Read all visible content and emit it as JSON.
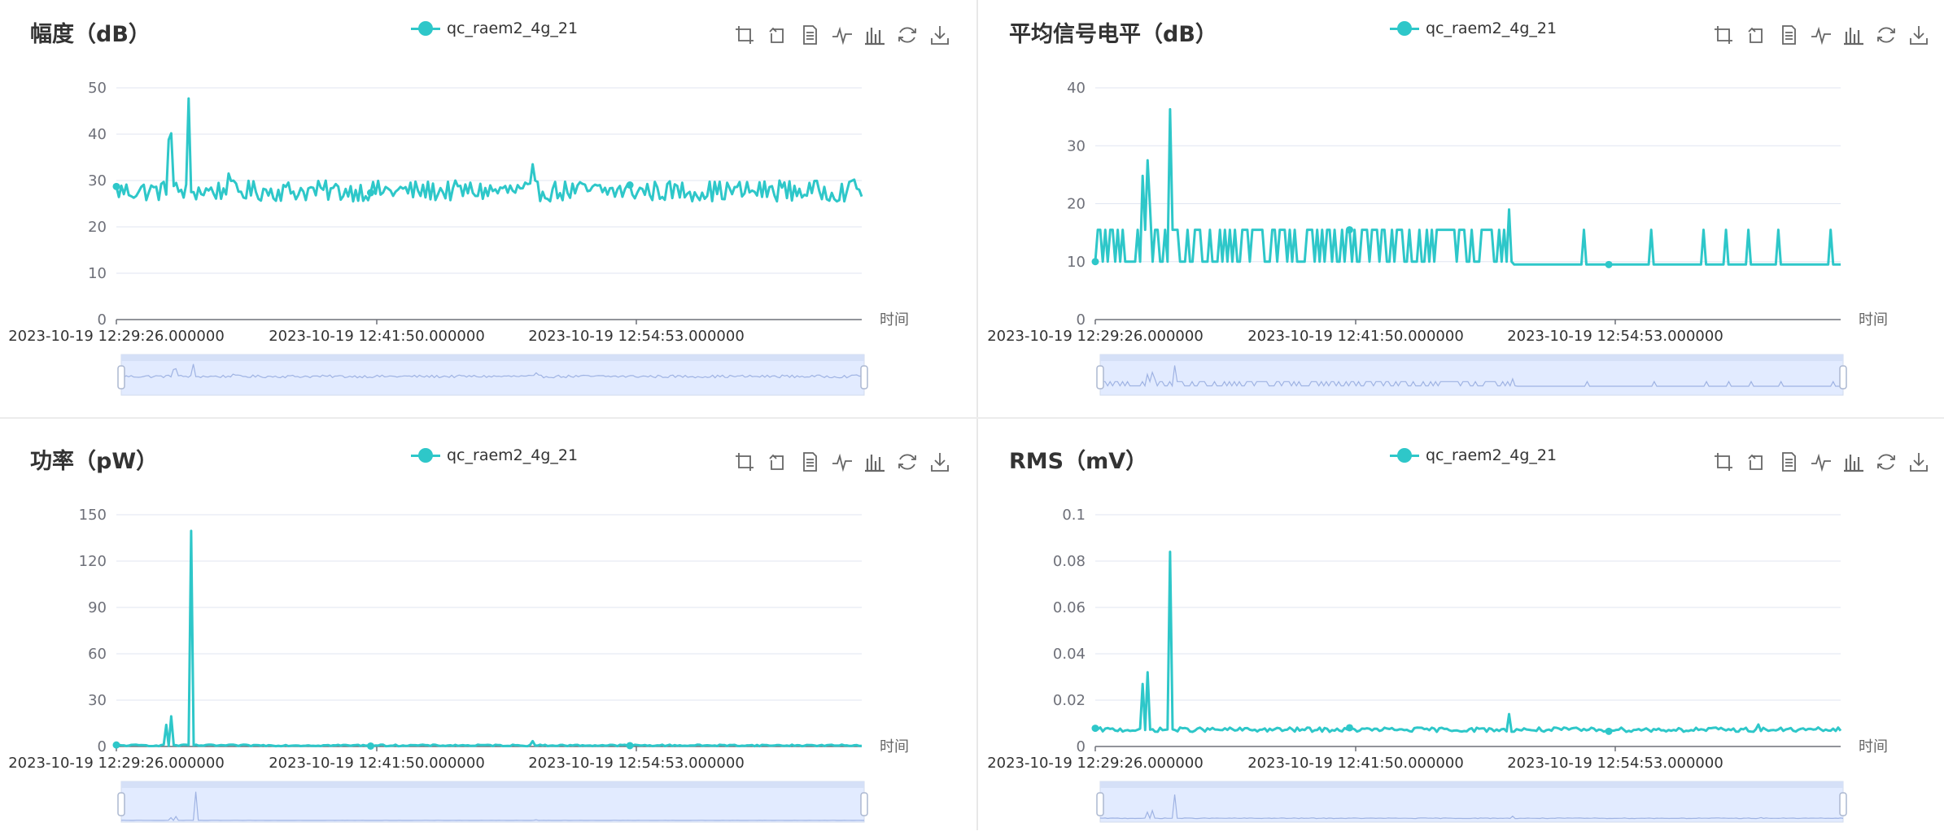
{
  "toolbox": [
    {
      "name": "zoom-area-icon",
      "label": "区域缩放"
    },
    {
      "name": "zoom-reset-icon",
      "label": "区域缩放还原"
    },
    {
      "name": "data-view-icon",
      "label": "数据视图"
    },
    {
      "name": "line-chart-icon",
      "label": "切换为折线图"
    },
    {
      "name": "bar-chart-icon",
      "label": "切换为柱状图"
    },
    {
      "name": "restore-icon",
      "label": "还原"
    },
    {
      "name": "save-image-icon",
      "label": "保存为图片"
    }
  ],
  "colors": {
    "series": "#2ec7c9",
    "axis": "#6e7079",
    "grid": "#e0e6f1",
    "zoom_fill": "#e2ebff",
    "zoom_border": "#d2dbee",
    "zoom_line": "#9fb3e3"
  },
  "chart_data": [
    {
      "type": "line",
      "title": "幅度（dB）",
      "legend": "qc_raem2_4g_21",
      "xlabel": "时间",
      "x_ticks": [
        "2023-10-19 12:29:26.000000",
        "2023-10-19 12:41:50.000000",
        "2023-10-19 12:54:53.000000"
      ],
      "ylim": [
        0,
        50
      ],
      "y_ticks": [
        0,
        10,
        20,
        30,
        40,
        50
      ],
      "baseline_range": [
        25.5,
        30
      ],
      "spikes": [
        [
          0.07,
          38.8
        ],
        [
          0.073,
          40.2
        ],
        [
          0.098,
          47.7
        ],
        [
          0.15,
          31.5
        ],
        [
          0.56,
          33.5
        ],
        [
          0.89,
          30
        ],
        [
          0.99,
          30.2
        ]
      ],
      "grid": true,
      "legend_position": "top-center"
    },
    {
      "type": "line",
      "title": "平均信号电平（dB）",
      "legend": "qc_raem2_4g_21",
      "xlabel": "时间",
      "x_ticks": [
        "2023-10-19 12:29:26.000000",
        "2023-10-19 12:41:50.000000",
        "2023-10-19 12:54:53.000000"
      ],
      "ylim": [
        0,
        40
      ],
      "y_ticks": [
        0,
        10,
        20,
        30,
        40
      ],
      "series_levels": [
        9.5,
        15.5
      ],
      "spikes": [
        [
          0.065,
          24.8
        ],
        [
          0.07,
          27.5
        ],
        [
          0.1,
          36.3
        ],
        [
          0.075,
          19
        ],
        [
          0.555,
          19
        ]
      ],
      "grid": true,
      "legend_position": "top-center"
    },
    {
      "type": "line",
      "title": "功率（pW）",
      "legend": "qc_raem2_4g_21",
      "xlabel": "时间",
      "x_ticks": [
        "2023-10-19 12:29:26.000000",
        "2023-10-19 12:41:50.000000",
        "2023-10-19 12:54:53.000000"
      ],
      "ylim": [
        0,
        150
      ],
      "y_ticks": [
        0,
        30,
        60,
        90,
        120,
        150
      ],
      "baseline_range": [
        0.2,
        1.2
      ],
      "spikes": [
        [
          0.068,
          14
        ],
        [
          0.072,
          19.5
        ],
        [
          0.1,
          139.5
        ],
        [
          0.56,
          3.5
        ]
      ],
      "grid": true,
      "legend_position": "top-center"
    },
    {
      "type": "line",
      "title": "RMS（mV）",
      "legend": "qc_raem2_4g_21",
      "xlabel": "时间",
      "x_ticks": [
        "2023-10-19 12:29:26.000000",
        "2023-10-19 12:41:50.000000",
        "2023-10-19 12:54:53.000000"
      ],
      "ylim": [
        0,
        0.1
      ],
      "y_ticks": [
        "0",
        "0.02",
        "0.04",
        "0.06",
        "0.08",
        "0.1"
      ],
      "baseline_range": [
        0.0063,
        0.0082
      ],
      "spikes": [
        [
          0.065,
          0.027
        ],
        [
          0.069,
          0.032
        ],
        [
          0.1,
          0.084
        ],
        [
          0.555,
          0.014
        ],
        [
          0.89,
          0.0095
        ]
      ],
      "grid": true,
      "legend_position": "top-center"
    }
  ]
}
